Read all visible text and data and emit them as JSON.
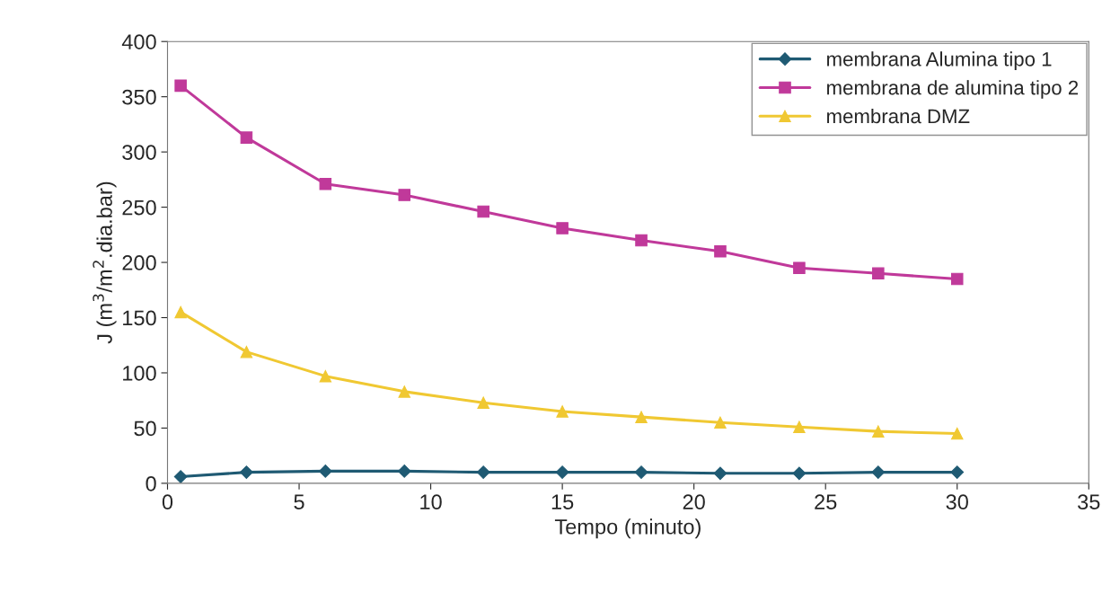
{
  "chart_data": {
    "type": "line",
    "xlabel": "Tempo (minuto)",
    "ylabel": "J (m$^{3}$/m$^{2}$.dia.bar)",
    "x": [
      0.5,
      3,
      6,
      9,
      12,
      15,
      18,
      21,
      24,
      27,
      30
    ],
    "series": [
      {
        "name": "membrana Alumina tipo 1",
        "color": "#1f5a73",
        "marker": "diamond",
        "values": [
          6,
          10,
          11,
          11,
          10,
          10,
          10,
          9,
          9,
          10,
          10
        ]
      },
      {
        "name": "membrana de alumina tipo 2",
        "color": "#c0399a",
        "marker": "square",
        "values": [
          360,
          313,
          271,
          261,
          246,
          231,
          220,
          210,
          195,
          190,
          185
        ]
      },
      {
        "name": "membrana DMZ",
        "color": "#f0c832",
        "marker": "triangle",
        "values": [
          155,
          119,
          97,
          83,
          73,
          65,
          60,
          55,
          51,
          47,
          45
        ]
      }
    ],
    "xlim": [
      0,
      35
    ],
    "xticks": [
      0,
      5,
      10,
      15,
      20,
      25,
      30,
      35
    ],
    "ylim": [
      0,
      400
    ],
    "yticks": [
      0,
      50,
      100,
      150,
      200,
      250,
      300,
      350,
      400
    ],
    "grid": false,
    "legend": "top right"
  }
}
